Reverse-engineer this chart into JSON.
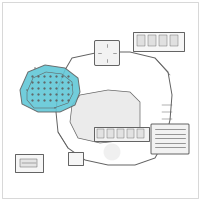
{
  "bg_color": "#ffffff",
  "border_color": "#c8c8c8",
  "highlight_color": "#62c8d8",
  "line_color": "#606060",
  "fig_width": 2.0,
  "fig_height": 2.0,
  "dpi": 100
}
